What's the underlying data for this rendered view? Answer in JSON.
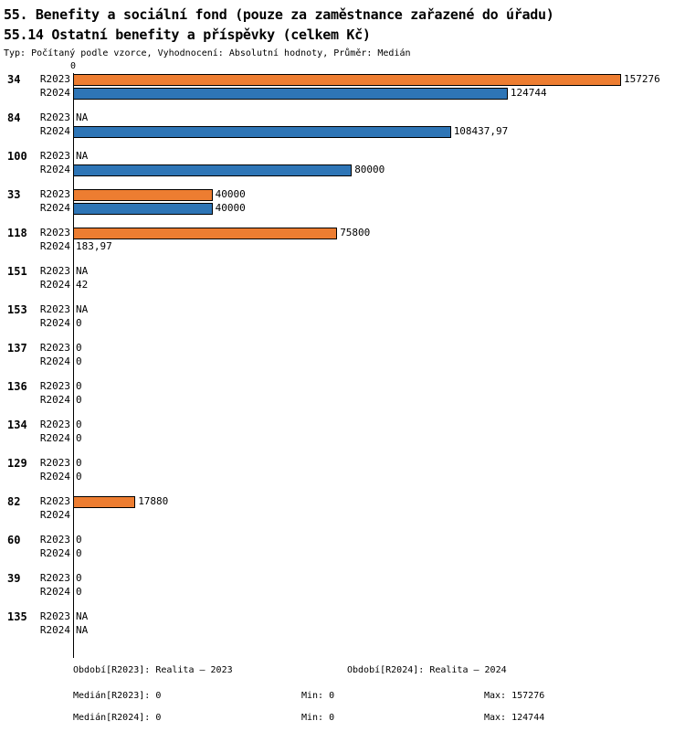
{
  "header": {
    "title_line1": "55. Benefity a sociální fond (pouze za zaměstnance zařazené do úřadu)",
    "title_line2": "55.14 Ostatní benefity a příspěvky (celkem Kč)",
    "meta": "Typ: Počítaný podle vzorce, Vyhodnocení: Absolutní hodnoty, Průměr: Medián"
  },
  "chart_data": {
    "type": "bar",
    "orientation": "horizontal",
    "unit": "Kč",
    "axis_tick_label": "0",
    "axis_origin": 0,
    "max_value": 157276,
    "series": [
      "R2023",
      "R2024"
    ],
    "colors": {
      "R2023": "#ED7D31",
      "R2024": "#2E75B6",
      "bar_border": "#000000"
    },
    "groups": [
      {
        "id": "34",
        "rows": [
          {
            "label": "R2023",
            "value": 157276,
            "display": "157276"
          },
          {
            "label": "R2024",
            "value": 124744,
            "display": "124744"
          }
        ]
      },
      {
        "id": "84",
        "rows": [
          {
            "label": "R2023",
            "value": null,
            "display": "NA"
          },
          {
            "label": "R2024",
            "value": 108437.97,
            "display": "108437,97"
          }
        ]
      },
      {
        "id": "100",
        "rows": [
          {
            "label": "R2023",
            "value": null,
            "display": "NA"
          },
          {
            "label": "R2024",
            "value": 80000,
            "display": "80000"
          }
        ]
      },
      {
        "id": "33",
        "rows": [
          {
            "label": "R2023",
            "value": 40000,
            "display": "40000"
          },
          {
            "label": "R2024",
            "value": 40000,
            "display": "40000"
          }
        ]
      },
      {
        "id": "118",
        "rows": [
          {
            "label": "R2023",
            "value": 75800,
            "display": "75800"
          },
          {
            "label": "R2024",
            "value": 183.97,
            "display": "183,97"
          }
        ]
      },
      {
        "id": "151",
        "rows": [
          {
            "label": "R2023",
            "value": null,
            "display": "NA"
          },
          {
            "label": "R2024",
            "value": 42,
            "display": "42"
          }
        ]
      },
      {
        "id": "153",
        "rows": [
          {
            "label": "R2023",
            "value": null,
            "display": "NA"
          },
          {
            "label": "R2024",
            "value": 0,
            "display": "0"
          }
        ]
      },
      {
        "id": "137",
        "rows": [
          {
            "label": "R2023",
            "value": 0,
            "display": "0"
          },
          {
            "label": "R2024",
            "value": 0,
            "display": "0"
          }
        ]
      },
      {
        "id": "136",
        "rows": [
          {
            "label": "R2023",
            "value": 0,
            "display": "0"
          },
          {
            "label": "R2024",
            "value": 0,
            "display": "0"
          }
        ]
      },
      {
        "id": "134",
        "rows": [
          {
            "label": "R2023",
            "value": 0,
            "display": "0"
          },
          {
            "label": "R2024",
            "value": 0,
            "display": "0"
          }
        ]
      },
      {
        "id": "129",
        "rows": [
          {
            "label": "R2023",
            "value": 0,
            "display": "0"
          },
          {
            "label": "R2024",
            "value": 0,
            "display": "0"
          }
        ]
      },
      {
        "id": "82",
        "rows": [
          {
            "label": "R2023",
            "value": 17880,
            "display": "17880"
          },
          {
            "label": "R2024",
            "value": null,
            "display": ""
          }
        ]
      },
      {
        "id": "60",
        "rows": [
          {
            "label": "R2023",
            "value": 0,
            "display": "0"
          },
          {
            "label": "R2024",
            "value": 0,
            "display": "0"
          }
        ]
      },
      {
        "id": "39",
        "rows": [
          {
            "label": "R2023",
            "value": 0,
            "display": "0"
          },
          {
            "label": "R2024",
            "value": 0,
            "display": "0"
          }
        ]
      },
      {
        "id": "135",
        "rows": [
          {
            "label": "R2023",
            "value": null,
            "display": "NA"
          },
          {
            "label": "R2024",
            "value": null,
            "display": "NA"
          }
        ]
      }
    ]
  },
  "footer": {
    "period_2023": {
      "label": "Období[R2023]:",
      "value": "Realita – 2023"
    },
    "period_2024": {
      "label": "Období[R2024]:",
      "value": "Realita – 2024"
    },
    "median_2023": {
      "label": "Medián[R2023]:",
      "value": "0"
    },
    "min_2023": {
      "label": "Min:",
      "value": "0"
    },
    "max_2023": {
      "label": "Max:",
      "value": "157276"
    },
    "median_2024": {
      "label": "Medián[R2024]:",
      "value": "0"
    },
    "min_2024": {
      "label": "Min:",
      "value": "0"
    },
    "max_2024": {
      "label": "Max:",
      "value": "124744"
    }
  }
}
